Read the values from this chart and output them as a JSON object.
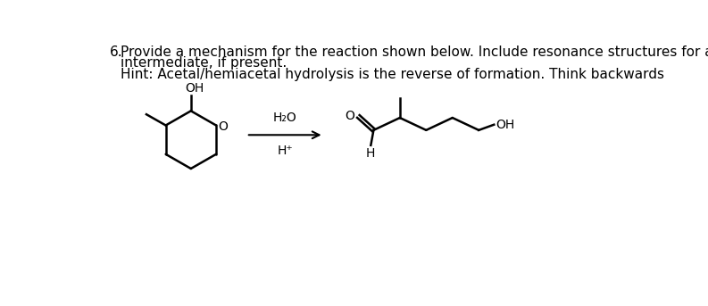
{
  "title_number": "6.",
  "title_text": "Provide a mechanism for the reaction shown below. Include resonance structures for any",
  "title_text2": "intermediate, if present.",
  "hint_text": "Hint: Acetal/hemiacetal hydrolysis is the reverse of formation. Think backwards",
  "reagent1": "H₂O",
  "reagent2": "H⁺",
  "label_OH_left": "OH",
  "label_O_left": "O",
  "label_O_right": "O",
  "label_H_right": "H",
  "label_OH_right": "OH",
  "bg_color": "#ffffff",
  "line_color": "#000000",
  "font_color": "#000000",
  "font_size_title": 11,
  "font_size_label": 10,
  "fig_width": 7.93,
  "fig_height": 3.43,
  "dpi": 100
}
